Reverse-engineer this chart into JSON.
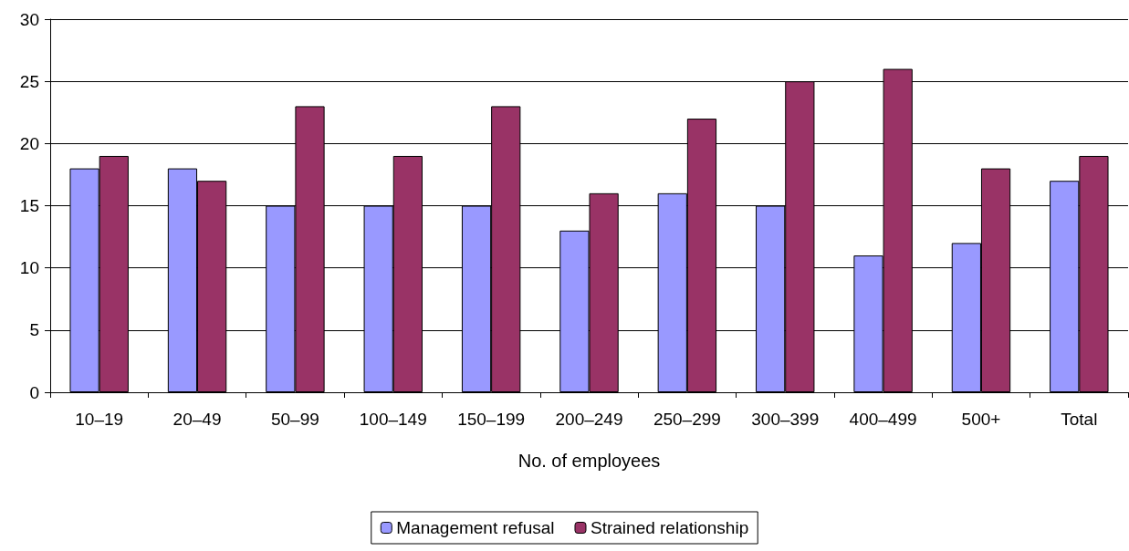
{
  "chart_data": {
    "type": "bar",
    "xlabel": "No. of employees",
    "categories": [
      "10–19",
      "20–49",
      "50–99",
      "100–149",
      "150–199",
      "200–249",
      "250–299",
      "300–399",
      "400–499",
      "500+",
      "Total"
    ],
    "series": [
      {
        "name": "Management refusal",
        "color": "#9999ff",
        "values": [
          18,
          18,
          15,
          15,
          15,
          13,
          16,
          15,
          11,
          12,
          17
        ]
      },
      {
        "name": "Strained relationship",
        "color": "#993366",
        "values": [
          19,
          17,
          23,
          19,
          23,
          16,
          22,
          25,
          26,
          18,
          19
        ]
      }
    ],
    "ylim": [
      0,
      30
    ],
    "yticks": [
      0,
      5,
      10,
      15,
      20,
      25,
      30
    ],
    "grid": "y",
    "legend": "bottom"
  }
}
